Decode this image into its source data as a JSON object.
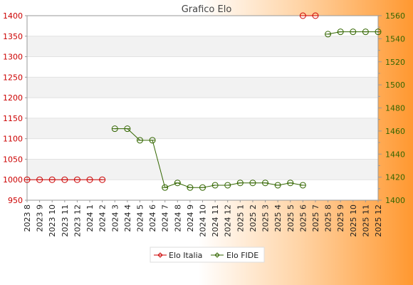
{
  "chart_data": {
    "type": "line",
    "title": "Grafico Elo",
    "categories": [
      "2023 8",
      "2023 9",
      "2023 10",
      "2023 11",
      "2023 12",
      "2024 1",
      "2024 2",
      "2024 3",
      "2024 4",
      "2024 5",
      "2024 6",
      "2024 7",
      "2024 8",
      "2024 9",
      "2024 10",
      "2024 11",
      "2024 12",
      "2025 1",
      "2025 2",
      "2025 3",
      "2025 4",
      "2025 5",
      "2025 6",
      "2025 7",
      "2025 8",
      "2025 9",
      "2025 10",
      "2025 11",
      "2025 12"
    ],
    "y_left": {
      "ylim": [
        950,
        1400
      ],
      "ticks": [
        950,
        1000,
        1050,
        1100,
        1150,
        1200,
        1250,
        1300,
        1350,
        1400
      ]
    },
    "y_right": {
      "ylim": [
        1400,
        1560
      ],
      "ticks": [
        1400,
        1420,
        1440,
        1460,
        1480,
        1500,
        1520,
        1540,
        1560
      ]
    },
    "series": [
      {
        "name": "Elo Italia",
        "axis": "left",
        "color": "#cc0000",
        "values": [
          1000,
          1000,
          1000,
          1000,
          1000,
          1000,
          1000,
          null,
          null,
          null,
          null,
          null,
          null,
          null,
          null,
          null,
          null,
          null,
          null,
          null,
          null,
          null,
          1400,
          1400,
          null,
          null,
          null,
          null,
          null
        ]
      },
      {
        "name": "Elo FIDE",
        "axis": "right",
        "color": "#336600",
        "values": [
          null,
          null,
          null,
          null,
          null,
          null,
          null,
          1462,
          1462,
          1452,
          1452,
          1411,
          1415,
          1411,
          1411,
          1413,
          1413,
          1415,
          1415,
          1415,
          1413,
          1415,
          1413,
          null,
          1544,
          1546,
          1546,
          1546,
          1546
        ]
      }
    ],
    "legend": "bottom-center",
    "grid": true
  }
}
